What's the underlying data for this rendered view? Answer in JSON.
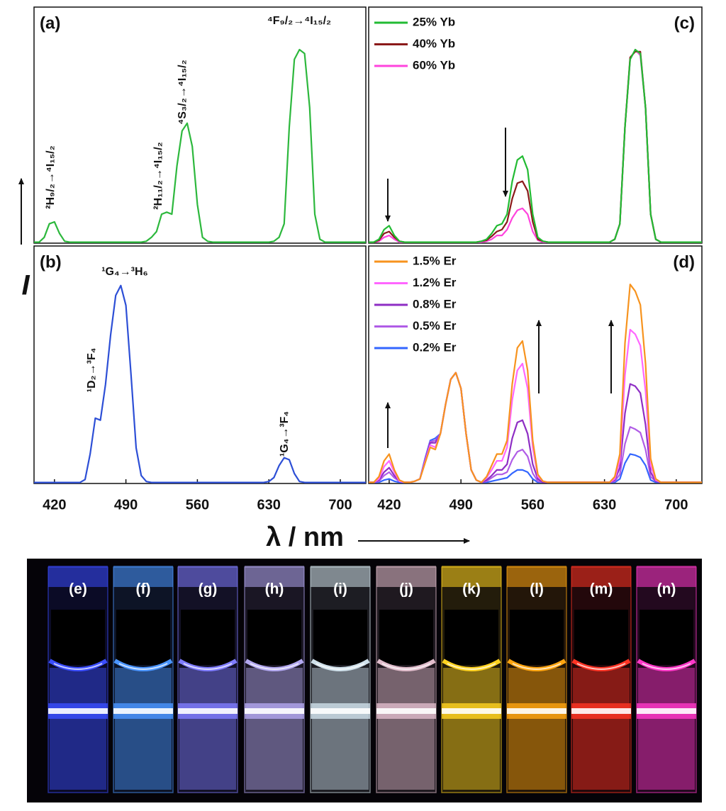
{
  "chart_data": [
    {
      "type": "line",
      "label": "(a)",
      "xlim": [
        400,
        725
      ],
      "ylim": [
        0,
        122
      ],
      "annotations": [
        "²H₉/₂→⁴I₁₅/₂",
        "²H₁₁/₂→⁴I₁₅/₂",
        "⁴S₃/₂→⁴I₁₅/₂",
        "⁴F₉/₂→⁴I₁₅/₂"
      ],
      "x": [
        400,
        405,
        410,
        415,
        420,
        425,
        430,
        435,
        440,
        445,
        450,
        455,
        460,
        465,
        470,
        475,
        480,
        485,
        490,
        495,
        500,
        505,
        510,
        515,
        520,
        525,
        530,
        535,
        540,
        545,
        550,
        555,
        560,
        565,
        570,
        575,
        580,
        585,
        590,
        595,
        600,
        605,
        610,
        615,
        620,
        625,
        630,
        635,
        640,
        645,
        650,
        655,
        660,
        665,
        670,
        675,
        680,
        685,
        690,
        695,
        700,
        705,
        710,
        715,
        720,
        725
      ],
      "series": [
        {
          "color": "#2db83d",
          "values": [
            0.5,
            0.5,
            3,
            10,
            11,
            5,
            1,
            0.5,
            0.5,
            0.5,
            0.5,
            0.5,
            0.5,
            0.5,
            0.5,
            0.5,
            0.5,
            0.5,
            0.5,
            0.5,
            0.5,
            0.5,
            1,
            3,
            6,
            15,
            16,
            15,
            40,
            58,
            62,
            50,
            20,
            3,
            1,
            0.5,
            0.5,
            0.5,
            0.5,
            0.5,
            0.5,
            0.5,
            0.5,
            0.5,
            0.5,
            0.5,
            0.5,
            1,
            3,
            10,
            60,
            95,
            100,
            98,
            70,
            15,
            2,
            0.5,
            0.5,
            0.5,
            0.5,
            0.5,
            0.5,
            0.5,
            0.5,
            0.5
          ]
        }
      ]
    },
    {
      "type": "line",
      "label": "(b)",
      "xlim": [
        400,
        725
      ],
      "ylim": [
        0,
        120
      ],
      "xticks": [
        420,
        490,
        560,
        630,
        700
      ],
      "annotations": [
        "¹G₄→³H₆",
        "¹D₂→³F₄",
        "¹G₄→³F₄"
      ],
      "x": [
        400,
        405,
        410,
        415,
        420,
        425,
        430,
        435,
        440,
        445,
        450,
        455,
        460,
        465,
        470,
        475,
        480,
        485,
        490,
        495,
        500,
        505,
        510,
        515,
        520,
        525,
        530,
        535,
        540,
        545,
        550,
        555,
        560,
        565,
        570,
        575,
        580,
        585,
        590,
        595,
        600,
        605,
        610,
        615,
        620,
        625,
        630,
        635,
        640,
        645,
        650,
        655,
        660,
        665,
        670,
        675,
        680,
        685,
        690,
        695,
        700,
        705,
        710,
        715,
        720,
        725
      ],
      "series": [
        {
          "color": "#2d4fd6",
          "values": [
            0.5,
            0.5,
            0.5,
            0.5,
            0.5,
            0.5,
            0.5,
            0.5,
            0.5,
            0.5,
            2,
            15,
            33,
            32,
            50,
            75,
            95,
            100,
            90,
            55,
            18,
            4,
            1,
            0.5,
            0.5,
            0.5,
            0.5,
            0.5,
            0.5,
            0.5,
            0.5,
            0.5,
            0.5,
            0.5,
            0.5,
            0.5,
            0.5,
            0.5,
            0.5,
            0.5,
            0.5,
            0.5,
            0.5,
            0.5,
            0.5,
            0.5,
            1,
            3,
            9,
            13,
            12,
            5,
            1,
            0.5,
            0.5,
            0.5,
            0.5,
            0.5,
            0.5,
            0.5,
            0.5,
            0.5,
            0.5,
            0.5,
            0.5,
            0.5
          ]
        }
      ]
    },
    {
      "type": "line",
      "label": "(c)",
      "xlim": [
        400,
        725
      ],
      "ylim": [
        0,
        122
      ],
      "legend": "upper left",
      "x": [
        400,
        405,
        410,
        415,
        420,
        425,
        430,
        435,
        440,
        445,
        450,
        455,
        460,
        465,
        470,
        475,
        480,
        485,
        490,
        495,
        500,
        505,
        510,
        515,
        520,
        525,
        530,
        535,
        540,
        545,
        550,
        555,
        560,
        565,
        570,
        575,
        580,
        585,
        590,
        595,
        600,
        605,
        610,
        615,
        620,
        625,
        630,
        635,
        640,
        645,
        650,
        655,
        660,
        665,
        670,
        675,
        680,
        685,
        690,
        695,
        700,
        705,
        710,
        715,
        720,
        725
      ],
      "series": [
        {
          "name": "25% Yb",
          "color": "#22bb33",
          "values": [
            0.5,
            0.5,
            2,
            7,
            9,
            4,
            1,
            0.5,
            0.5,
            0.5,
            0.5,
            0.5,
            0.5,
            0.5,
            0.5,
            0.5,
            0.5,
            0.5,
            0.5,
            0.5,
            0.5,
            0.5,
            1,
            2,
            5,
            9,
            10,
            15,
            32,
            43,
            45,
            38,
            15,
            3,
            1,
            0.5,
            0.5,
            0.5,
            0.5,
            0.5,
            0.5,
            0.5,
            0.5,
            0.5,
            0.5,
            0.5,
            0.5,
            0.5,
            2,
            10,
            60,
            95,
            100,
            98,
            70,
            15,
            2,
            0.5,
            0.5,
            0.5,
            0.5,
            0.5,
            0.5,
            0.5,
            0.5,
            0.5
          ]
        },
        {
          "name": "40% Yb",
          "color": "#8b1a1a",
          "values": [
            0.5,
            0.5,
            1.5,
            5,
            6,
            3,
            1,
            0.5,
            0.5,
            0.5,
            0.5,
            0.5,
            0.5,
            0.5,
            0.5,
            0.5,
            0.5,
            0.5,
            0.5,
            0.5,
            0.5,
            0.5,
            1,
            1.5,
            3.5,
            6,
            7,
            11,
            23,
            31,
            32,
            27,
            11,
            2,
            1,
            0.5,
            0.5,
            0.5,
            0.5,
            0.5,
            0.5,
            0.5,
            0.5,
            0.5,
            0.5,
            0.5,
            0.5,
            0.5,
            2,
            10,
            60,
            96,
            99,
            99,
            70,
            15,
            2,
            0.5,
            0.5,
            0.5,
            0.5,
            0.5,
            0.5,
            0.5,
            0.5,
            0.5
          ]
        },
        {
          "name": "60% Yb",
          "color": "#ff44dd",
          "values": [
            0.5,
            0.5,
            1,
            3,
            4,
            2,
            0.5,
            0.5,
            0.5,
            0.5,
            0.5,
            0.5,
            0.5,
            0.5,
            0.5,
            0.5,
            0.5,
            0.5,
            0.5,
            0.5,
            0.5,
            0.5,
            0.5,
            1,
            2,
            4,
            4,
            7,
            13,
            17,
            18,
            15,
            6,
            1.5,
            0.5,
            0.5,
            0.5,
            0.5,
            0.5,
            0.5,
            0.5,
            0.5,
            0.5,
            0.5,
            0.5,
            0.5,
            0.5,
            0.5,
            2,
            10,
            60,
            95,
            100,
            97,
            70,
            15,
            2,
            0.5,
            0.5,
            0.5,
            0.5,
            0.5,
            0.5,
            0.5,
            0.5,
            0.5
          ]
        }
      ]
    },
    {
      "type": "line",
      "label": "(d)",
      "xlim": [
        400,
        725
      ],
      "ylim": [
        0,
        105
      ],
      "xticks": [
        420,
        490,
        560,
        630,
        700
      ],
      "legend": "upper left",
      "x": [
        400,
        405,
        410,
        415,
        420,
        425,
        430,
        435,
        440,
        445,
        450,
        455,
        460,
        465,
        470,
        475,
        480,
        485,
        490,
        495,
        500,
        505,
        510,
        515,
        520,
        525,
        530,
        535,
        540,
        545,
        550,
        555,
        560,
        565,
        570,
        575,
        580,
        585,
        590,
        595,
        600,
        605,
        610,
        615,
        620,
        625,
        630,
        635,
        640,
        645,
        650,
        655,
        660,
        665,
        670,
        675,
        680,
        685,
        690,
        695,
        700,
        705,
        710,
        715,
        720,
        725
      ],
      "series": [
        {
          "name": "1.5% Er",
          "color": "#f7931e",
          "values": [
            0.5,
            0.5,
            3,
            10,
            13,
            6,
            1.5,
            0.5,
            0.5,
            1,
            2,
            9,
            16,
            15,
            22,
            35,
            46,
            49,
            42,
            22,
            6,
            1.5,
            0.5,
            3,
            8,
            13,
            13,
            19,
            44,
            60,
            63,
            50,
            19,
            4,
            1,
            0.5,
            0.5,
            0.5,
            0.5,
            0.5,
            0.5,
            0.5,
            0.5,
            0.5,
            0.5,
            0.5,
            0.5,
            0.5,
            3,
            13,
            62,
            88,
            85,
            79,
            53,
            11,
            2,
            0.5,
            0.5,
            0.5,
            0.5,
            0.5,
            0.5,
            0.5,
            0.5,
            0.5
          ]
        },
        {
          "name": "1.2% Er",
          "color": "#ff66ff",
          "values": [
            0.5,
            0.5,
            2,
            7.5,
            10,
            5,
            1,
            0.5,
            0.5,
            1,
            2,
            9.5,
            17,
            16,
            22,
            35,
            46,
            49,
            42,
            22,
            6,
            1.5,
            0.5,
            2.5,
            6,
            10,
            10,
            16,
            37,
            50,
            53,
            42,
            16,
            3,
            1,
            0.5,
            0.5,
            0.5,
            0.5,
            0.5,
            0.5,
            0.5,
            0.5,
            0.5,
            0.5,
            0.5,
            0.5,
            0.5,
            2,
            10,
            48,
            68,
            66,
            61,
            41,
            8,
            1.5,
            0.5,
            0.5,
            0.5,
            0.5,
            0.5,
            0.5,
            0.5,
            0.5,
            0.5
          ]
        },
        {
          "name": "0.8% Er",
          "color": "#8e2ec4",
          "values": [
            0.5,
            0.5,
            1.5,
            5,
            7,
            3.5,
            1,
            0.5,
            0.5,
            1,
            2,
            10,
            18,
            18,
            22,
            35,
            46,
            49,
            42,
            22,
            6,
            1.5,
            0.5,
            1.5,
            3.5,
            6,
            6,
            8.5,
            20,
            27,
            28,
            22,
            8.5,
            2,
            0.5,
            0.5,
            0.5,
            0.5,
            0.5,
            0.5,
            0.5,
            0.5,
            0.5,
            0.5,
            0.5,
            0.5,
            0.5,
            0.5,
            1.5,
            7,
            31,
            44,
            43,
            40,
            26,
            5,
            1,
            0.5,
            0.5,
            0.5,
            0.5,
            0.5,
            0.5,
            0.5,
            0.5,
            0.5
          ]
        },
        {
          "name": "0.5% Er",
          "color": "#b05ce6",
          "values": [
            0.5,
            0.5,
            1,
            3.5,
            5,
            2.5,
            1,
            0.5,
            0.5,
            1,
            2,
            10.5,
            18.5,
            19,
            22,
            35,
            46,
            49,
            42,
            22,
            6,
            1.5,
            0.5,
            1,
            2.5,
            4,
            4,
            5,
            10.5,
            14,
            15,
            12,
            4.5,
            1,
            0.5,
            0.5,
            0.5,
            0.5,
            0.5,
            0.5,
            0.5,
            0.5,
            0.5,
            0.5,
            0.5,
            0.5,
            0.5,
            0.5,
            1,
            4,
            17.5,
            25,
            24,
            22.5,
            15,
            3,
            1,
            0.5,
            0.5,
            0.5,
            0.5,
            0.5,
            0.5,
            0.5,
            0.5,
            0.5
          ]
        },
        {
          "name": "0.2% Er",
          "color": "#3366ff",
          "values": [
            0.5,
            0.5,
            0.5,
            1.5,
            2,
            1,
            0.5,
            0.5,
            0.5,
            1,
            2,
            11,
            19,
            20,
            22,
            35,
            46,
            49,
            42,
            22,
            6,
            1.5,
            0.5,
            0.5,
            1,
            1.5,
            2,
            2.5,
            4.5,
            6,
            6,
            5,
            2,
            0.5,
            0.5,
            0.5,
            0.5,
            0.5,
            0.5,
            0.5,
            0.5,
            0.5,
            0.5,
            0.5,
            0.5,
            0.5,
            0.5,
            0.5,
            0.5,
            2,
            9,
            13,
            12.5,
            11.5,
            8,
            1.5,
            0.5,
            0.5,
            0.5,
            0.5,
            0.5,
            0.5,
            0.5,
            0.5,
            0.5,
            0.5
          ]
        }
      ]
    }
  ],
  "xlabel": "λ / nm",
  "ylabel": "I",
  "photo": {
    "labels": [
      "(e)",
      "(f)",
      "(g)",
      "(h)",
      "(i)",
      "(j)",
      "(k)",
      "(l)",
      "(m)",
      "(n)"
    ]
  }
}
